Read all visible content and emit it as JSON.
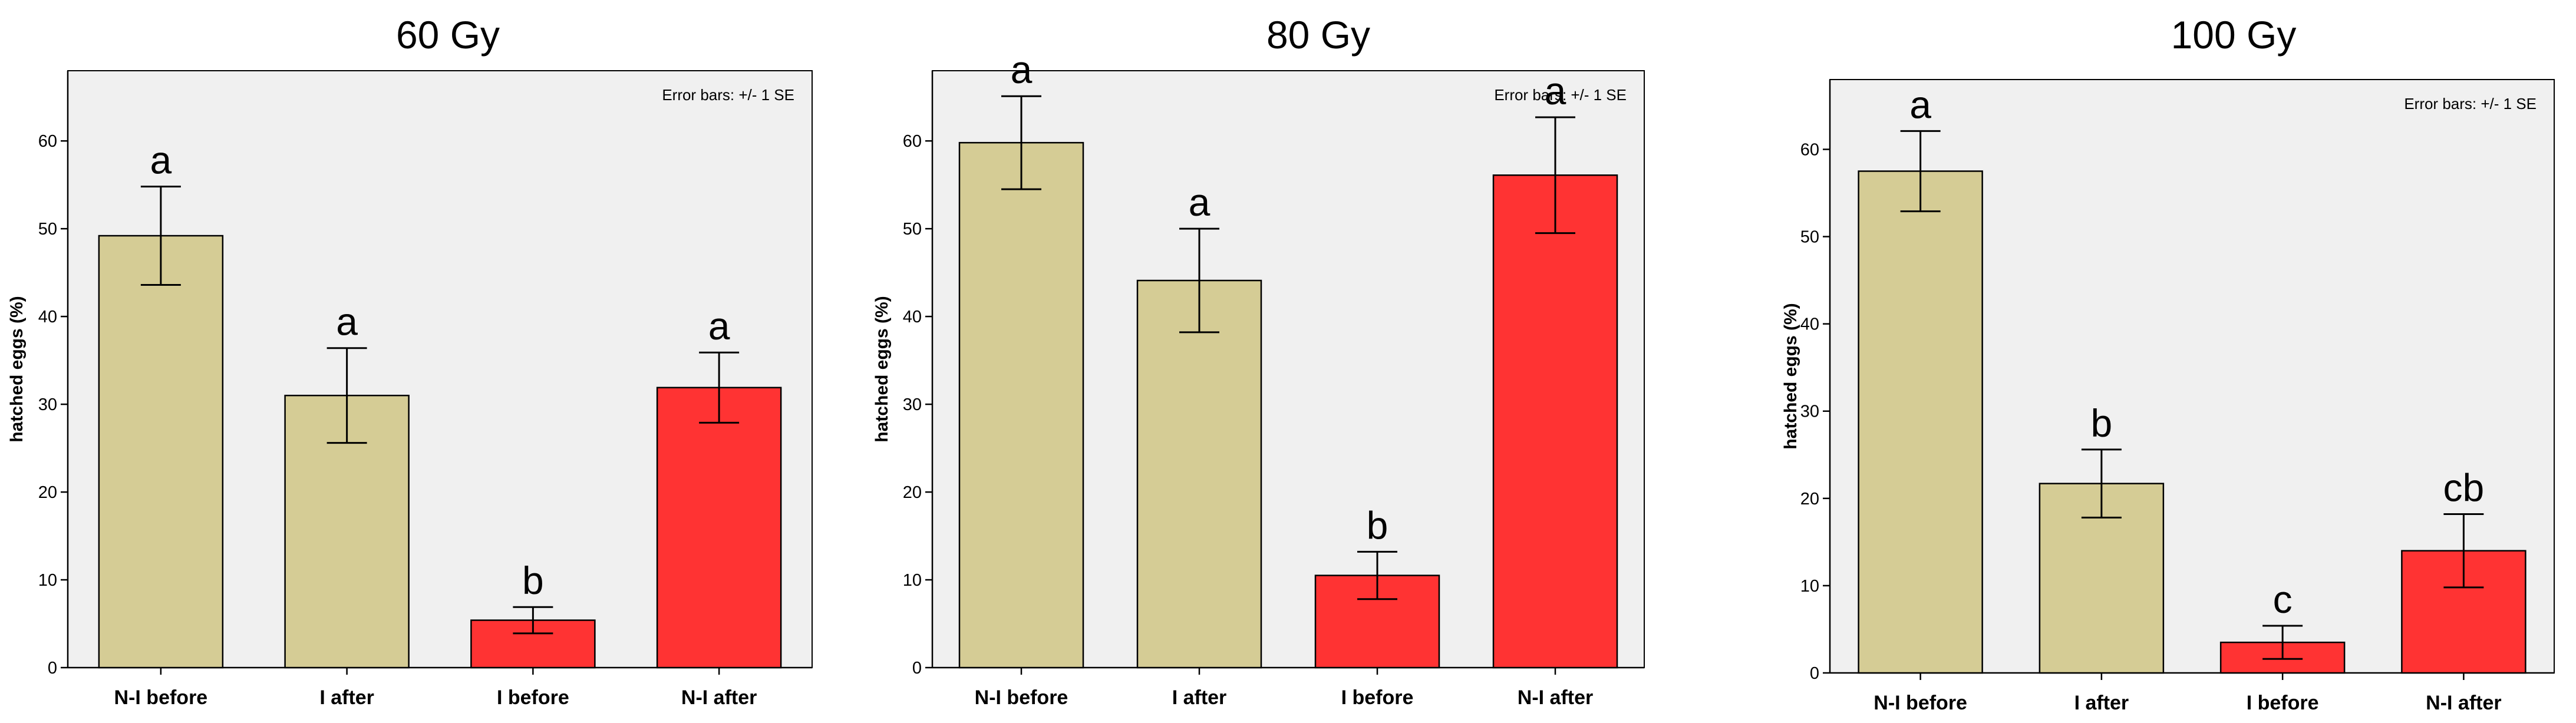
{
  "chart_data": [
    {
      "type": "bar",
      "title": "60 Gy",
      "ylabel": "hatched eggs (%)",
      "note": "Error bars: +/- 1 SE",
      "categories": [
        "N-I before",
        "I after",
        "I before",
        "N-I after"
      ],
      "values": [
        49.2,
        31.0,
        5.4,
        31.9
      ],
      "error": [
        5.6,
        5.4,
        1.5,
        4.0
      ],
      "letters": [
        "a",
        "a",
        "b",
        "a"
      ],
      "colors": [
        "#d5cc95",
        "#d5cc95",
        "#ff3333",
        "#ff3333"
      ],
      "ylim": [
        0,
        68
      ],
      "yticks": [
        0,
        10,
        20,
        30,
        40,
        50,
        60
      ],
      "grid": false
    },
    {
      "type": "bar",
      "title": "80 Gy",
      "ylabel": "hatched eggs (%)",
      "note": "Error bars: +/- 1 SE",
      "categories": [
        "N-I before",
        "I after",
        "I before",
        "N-I after"
      ],
      "values": [
        59.8,
        44.1,
        10.5,
        56.1
      ],
      "error": [
        5.3,
        5.9,
        2.7,
        6.6
      ],
      "letters": [
        "a",
        "a",
        "b",
        "a"
      ],
      "colors": [
        "#d5cc95",
        "#d5cc95",
        "#ff3333",
        "#ff3333"
      ],
      "ylim": [
        0,
        68
      ],
      "yticks": [
        0,
        10,
        20,
        30,
        40,
        50,
        60
      ],
      "grid": false
    },
    {
      "type": "bar",
      "title": "100 Gy",
      "ylabel": "hatched eggs (%)",
      "note": "Error bars: +/- 1 SE",
      "categories": [
        "N-I before",
        "I after",
        "I before",
        "N-I after"
      ],
      "values": [
        57.5,
        21.7,
        3.5,
        14.0
      ],
      "error": [
        4.6,
        3.9,
        1.9,
        4.2
      ],
      "letters": [
        "a",
        "b",
        "c",
        "cb"
      ],
      "colors": [
        "#d5cc95",
        "#d5cc95",
        "#ff3333",
        "#ff3333"
      ],
      "ylim": [
        0,
        68
      ],
      "yticks": [
        0,
        10,
        20,
        30,
        40,
        50,
        60
      ],
      "grid": false
    }
  ]
}
